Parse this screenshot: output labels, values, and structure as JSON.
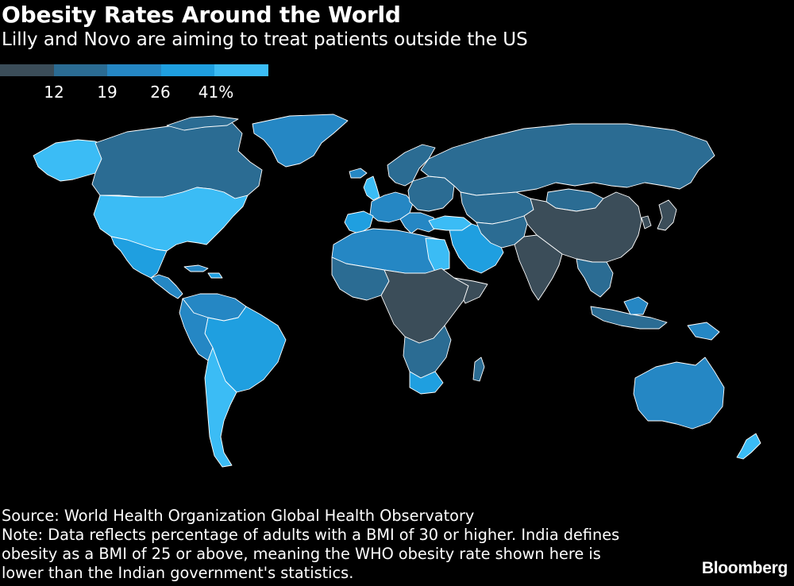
{
  "title": "Obesity Rates Around the World",
  "subtitle": "Lilly and Novo are aiming to treat patients outside the US",
  "legend": {
    "labels": [
      "12",
      "19",
      "26",
      "41%"
    ],
    "colors": [
      "#3b4d59",
      "#2b6c93",
      "#2587c4",
      "#1f9fe0",
      "#3bbcf5"
    ]
  },
  "footer": {
    "source": "Source: World Health Organization Global Health Observatory",
    "note": "Note: Data reflects percentage of adults with a BMI of 30 or higher. India defines obesity as a BMI of 25 or above, meaning the WHO obesity rate shown here is lower than the Indian government's statistics."
  },
  "brand": "Bloomberg"
}
